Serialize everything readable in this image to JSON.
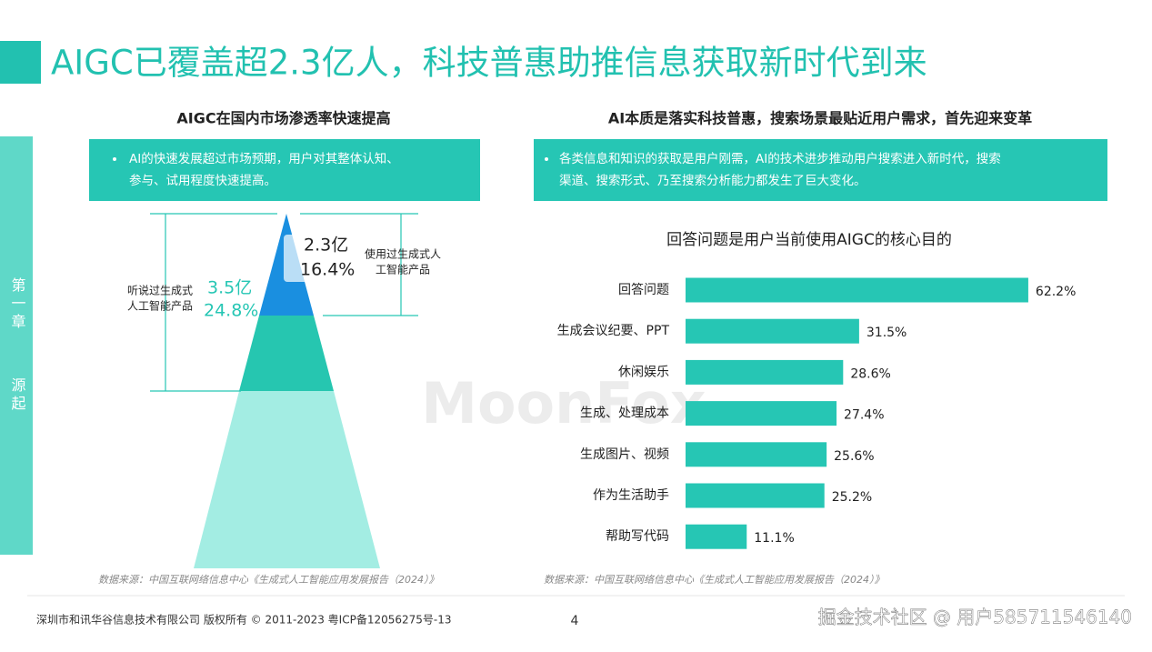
{
  "header": {
    "title": "AIGC已覆盖超2.3亿人，科技普惠助推信息获取新时代到来"
  },
  "sidebar": {
    "chapter": "第一章",
    "section": "源起"
  },
  "left": {
    "heading": "AIGC在国内市场渗透率快速提高",
    "bullet": [
      "AI的快速发展超过市场预期，用户对其整体认知、",
      "参与、试用程度快速提高。"
    ],
    "source": "数据来源：中国互联网络信息中心《生成式人工智能应用发展报告（2024）》"
  },
  "pyramid": {
    "top_value": "2.3亿",
    "top_pct": "16.4%",
    "top_label": [
      "使用过生成式人",
      "工智能产品"
    ],
    "mid_value": "3.5亿",
    "mid_pct": "24.8%",
    "mid_label": [
      "听说过生成式",
      "人工智能产品"
    ]
  },
  "right": {
    "heading": "AI本质是落实科技普惠，搜索场景最贴近用户需求，首先迎来变革",
    "bullet": [
      "各类信息和知识的获取是用户刚需，AI的技术进步推动用户搜索进入新时代，搜索",
      "渠道、搜索形式、乃至搜索分析能力都发生了巨大变化。"
    ],
    "source": "数据来源：中国互联网络信息中心《生成式人工智能应用发展报告（2024）》"
  },
  "chart_data": {
    "type": "bar",
    "orientation": "horizontal",
    "title": "回答问题是用户当前使用AIGC的核心目的",
    "categories": [
      "回答问题",
      "生成会议纪要、PPT",
      "休闲娱乐",
      "生成、处理成本",
      "生成图片、视频",
      "作为生活助手",
      "帮助写代码"
    ],
    "values": [
      62.2,
      31.5,
      28.6,
      27.4,
      25.6,
      25.2,
      11.1
    ],
    "value_labels": [
      "62.2%",
      "31.5%",
      "28.6%",
      "27.4%",
      "25.6%",
      "25.2%",
      "11.1%"
    ],
    "color": "#26c6b4"
  },
  "watermark": "MoonFox",
  "footer": {
    "copyright": "深圳市和讯华谷信息技术有限公司 版权所有 © 2011-2023 粤ICP备12056275号-13",
    "page": "4",
    "credit": "掘金技术社区 @ 用户585711546140"
  }
}
